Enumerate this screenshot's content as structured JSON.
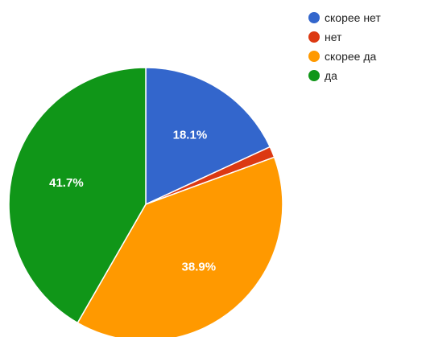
{
  "chart_data": {
    "type": "pie",
    "slices": [
      {
        "name": "скорее нет",
        "value": 18.1,
        "label": "18.1%",
        "color": "#3366cc"
      },
      {
        "name": "нет",
        "value": 1.3,
        "label": "",
        "color": "#dc3912"
      },
      {
        "name": "скорее да",
        "value": 38.9,
        "label": "38.9%",
        "color": "#ff9900"
      },
      {
        "name": "да",
        "value": 41.7,
        "label": "41.7%",
        "color": "#109618"
      }
    ],
    "legend": {
      "placement": "top-right",
      "items": [
        {
          "label": "скорее нет",
          "color": "#3366cc"
        },
        {
          "label": "нет",
          "color": "#dc3912"
        },
        {
          "label": "скорее да",
          "color": "#ff9900"
        },
        {
          "label": "да",
          "color": "#109618"
        }
      ]
    }
  }
}
